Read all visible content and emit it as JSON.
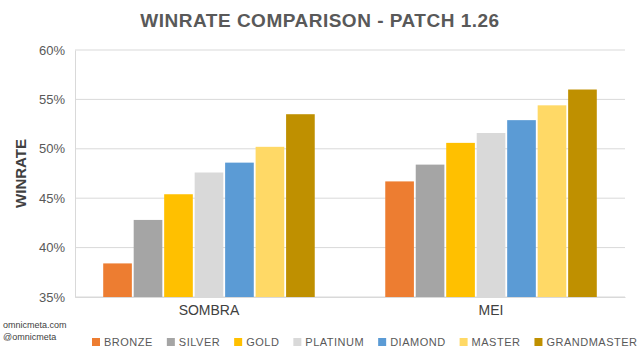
{
  "chart_data": {
    "type": "bar",
    "title": "WINRATE COMPARISON - PATCH 1.26",
    "y_label": "WINRATE",
    "categories": [
      "SOMBRA",
      "MEI"
    ],
    "series": [
      {
        "name": "BRONZE",
        "color": "#ed7d31",
        "values": [
          38.4,
          46.7
        ]
      },
      {
        "name": "SILVER",
        "color": "#a5a5a5",
        "values": [
          42.8,
          48.4
        ]
      },
      {
        "name": "GOLD",
        "color": "#ffc000",
        "values": [
          45.4,
          50.6
        ]
      },
      {
        "name": "PLATINUM",
        "color": "#d9d9d9",
        "values": [
          47.6,
          51.6
        ]
      },
      {
        "name": "DIAMOND",
        "color": "#5b9bd5",
        "values": [
          48.6,
          52.9
        ]
      },
      {
        "name": "MASTER",
        "color": "#ffd966",
        "values": [
          50.2,
          54.4
        ]
      },
      {
        "name": "GRANDMASTER",
        "color": "#bf9000",
        "values": [
          53.5,
          56.0
        ]
      }
    ],
    "ylim": [
      35,
      60
    ],
    "yticks": [
      {
        "value": 35,
        "label": "35%"
      },
      {
        "value": 40,
        "label": "40%"
      },
      {
        "value": 45,
        "label": "45%"
      },
      {
        "value": 50,
        "label": "50%"
      },
      {
        "value": 55,
        "label": "55%"
      },
      {
        "value": 60,
        "label": "60%"
      }
    ],
    "grid": true,
    "legend": "bottom",
    "annotations": [
      "omnicmeta.com",
      "@omnicmeta"
    ]
  }
}
